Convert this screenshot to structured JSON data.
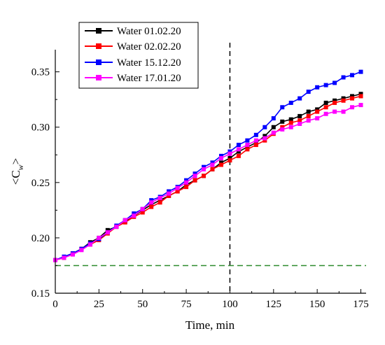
{
  "chart_data": {
    "type": "line",
    "xlabel": "Time, min",
    "ylabel_main": "<C",
    "ylabel_sub": "w",
    "ylabel_close": ">",
    "xlim": [
      0,
      178
    ],
    "ylim": [
      0.15,
      0.37
    ],
    "xticks": [
      0,
      25,
      50,
      75,
      100,
      125,
      150,
      175
    ],
    "yticks": [
      0.15,
      0.2,
      0.25,
      0.3,
      0.35
    ],
    "xtick_labels": [
      "0",
      "25",
      "50",
      "75",
      "100",
      "125",
      "150",
      "175"
    ],
    "ytick_labels": [
      "0.15",
      "0.20",
      "0.25",
      "0.30",
      "0.35"
    ],
    "vline_x": 100,
    "hline_y": 0.175,
    "legend_position": "top-left",
    "series": [
      {
        "name": "Water 01.02.20",
        "color": "#000000",
        "x": [
          0,
          5,
          10,
          15,
          20,
          25,
          30,
          35,
          40,
          45,
          50,
          55,
          60,
          65,
          70,
          75,
          80,
          85,
          90,
          95,
          100,
          105,
          110,
          115,
          120,
          125,
          130,
          135,
          140,
          145,
          150,
          155,
          160,
          165,
          170,
          175
        ],
        "y": [
          0.18,
          0.182,
          0.186,
          0.19,
          0.196,
          0.2,
          0.207,
          0.21,
          0.215,
          0.22,
          0.225,
          0.23,
          0.234,
          0.238,
          0.242,
          0.248,
          0.252,
          0.256,
          0.262,
          0.268,
          0.272,
          0.278,
          0.282,
          0.286,
          0.292,
          0.3,
          0.305,
          0.307,
          0.31,
          0.314,
          0.316,
          0.322,
          0.324,
          0.326,
          0.328,
          0.33
        ]
      },
      {
        "name": "Water 02.02.20",
        "color": "#ff0000",
        "x": [
          0,
          5,
          10,
          15,
          20,
          25,
          30,
          35,
          40,
          45,
          50,
          55,
          60,
          65,
          70,
          75,
          80,
          85,
          90,
          95,
          100,
          105,
          110,
          115,
          120,
          125,
          130,
          135,
          140,
          145,
          150,
          155,
          160,
          165,
          170,
          175
        ],
        "y": [
          0.18,
          0.182,
          0.186,
          0.19,
          0.194,
          0.198,
          0.204,
          0.21,
          0.214,
          0.219,
          0.223,
          0.228,
          0.232,
          0.238,
          0.242,
          0.246,
          0.252,
          0.256,
          0.262,
          0.266,
          0.27,
          0.274,
          0.28,
          0.284,
          0.288,
          0.294,
          0.3,
          0.304,
          0.306,
          0.31,
          0.314,
          0.318,
          0.322,
          0.324,
          0.326,
          0.328
        ]
      },
      {
        "name": "Water 15.12.20",
        "color": "#0000ff",
        "x": [
          0,
          5,
          10,
          15,
          20,
          25,
          30,
          35,
          40,
          45,
          50,
          55,
          60,
          65,
          70,
          75,
          80,
          85,
          90,
          95,
          100,
          105,
          110,
          115,
          120,
          125,
          130,
          135,
          140,
          145,
          150,
          155,
          160,
          165,
          170,
          175
        ],
        "y": [
          0.18,
          0.183,
          0.186,
          0.19,
          0.195,
          0.199,
          0.205,
          0.211,
          0.216,
          0.222,
          0.226,
          0.234,
          0.237,
          0.242,
          0.246,
          0.252,
          0.258,
          0.264,
          0.268,
          0.274,
          0.278,
          0.284,
          0.288,
          0.293,
          0.3,
          0.308,
          0.318,
          0.322,
          0.326,
          0.332,
          0.336,
          0.338,
          0.34,
          0.345,
          0.347,
          0.35
        ]
      },
      {
        "name": "Water 17.01.20",
        "color": "#ff00ff",
        "x": [
          0,
          5,
          10,
          15,
          20,
          25,
          30,
          35,
          40,
          45,
          50,
          55,
          60,
          65,
          70,
          75,
          80,
          85,
          90,
          95,
          100,
          105,
          110,
          115,
          120,
          125,
          130,
          135,
          140,
          145,
          150,
          155,
          160,
          165,
          170,
          175
        ],
        "y": [
          0.18,
          0.182,
          0.185,
          0.189,
          0.194,
          0.2,
          0.205,
          0.21,
          0.216,
          0.22,
          0.226,
          0.232,
          0.236,
          0.24,
          0.245,
          0.25,
          0.256,
          0.262,
          0.266,
          0.272,
          0.276,
          0.28,
          0.284,
          0.288,
          0.29,
          0.295,
          0.298,
          0.3,
          0.303,
          0.306,
          0.308,
          0.312,
          0.314,
          0.314,
          0.318,
          0.32
        ]
      }
    ]
  }
}
